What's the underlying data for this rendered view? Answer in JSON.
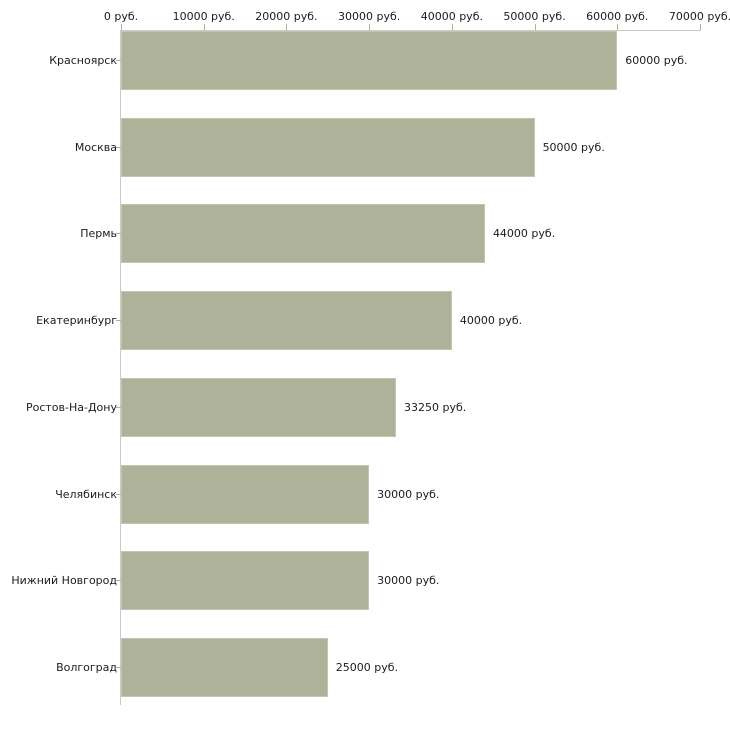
{
  "chart_data": {
    "type": "bar",
    "orientation": "horizontal",
    "title": "",
    "xlabel": "",
    "ylabel": "",
    "grid": false,
    "legend": false,
    "categories": [
      "Красноярск",
      "Москва",
      "Пермь",
      "Екатеринбург",
      "Ростов-На-Дону",
      "Челябинск",
      "Нижний Новгород",
      "Волгоград"
    ],
    "values": [
      60000,
      50000,
      44000,
      40000,
      33250,
      30000,
      30000,
      25000
    ],
    "value_labels": [
      "60000 руб.",
      "50000 руб.",
      "44000 руб.",
      "40000 руб.",
      "33250 руб.",
      "30000 руб.",
      "30000 руб.",
      "25000 руб."
    ],
    "x_axis": {
      "position": "top",
      "min": 0,
      "max": 70000,
      "ticks": [
        0,
        10000,
        20000,
        30000,
        40000,
        50000,
        60000,
        70000
      ],
      "tick_labels": [
        "0 руб.",
        "10000 руб.",
        "20000 руб.",
        "30000 руб.",
        "40000 руб.",
        "50000 руб.",
        "60000 руб.",
        "70000 руб."
      ]
    },
    "colors": {
      "bar_fill": "#adb299",
      "bar_border": "#c2c6af",
      "axis_line": "#c9c9c9",
      "tick_mark": "#b3b38e",
      "text": "#1c1c1c",
      "background": "#ffffff"
    }
  }
}
